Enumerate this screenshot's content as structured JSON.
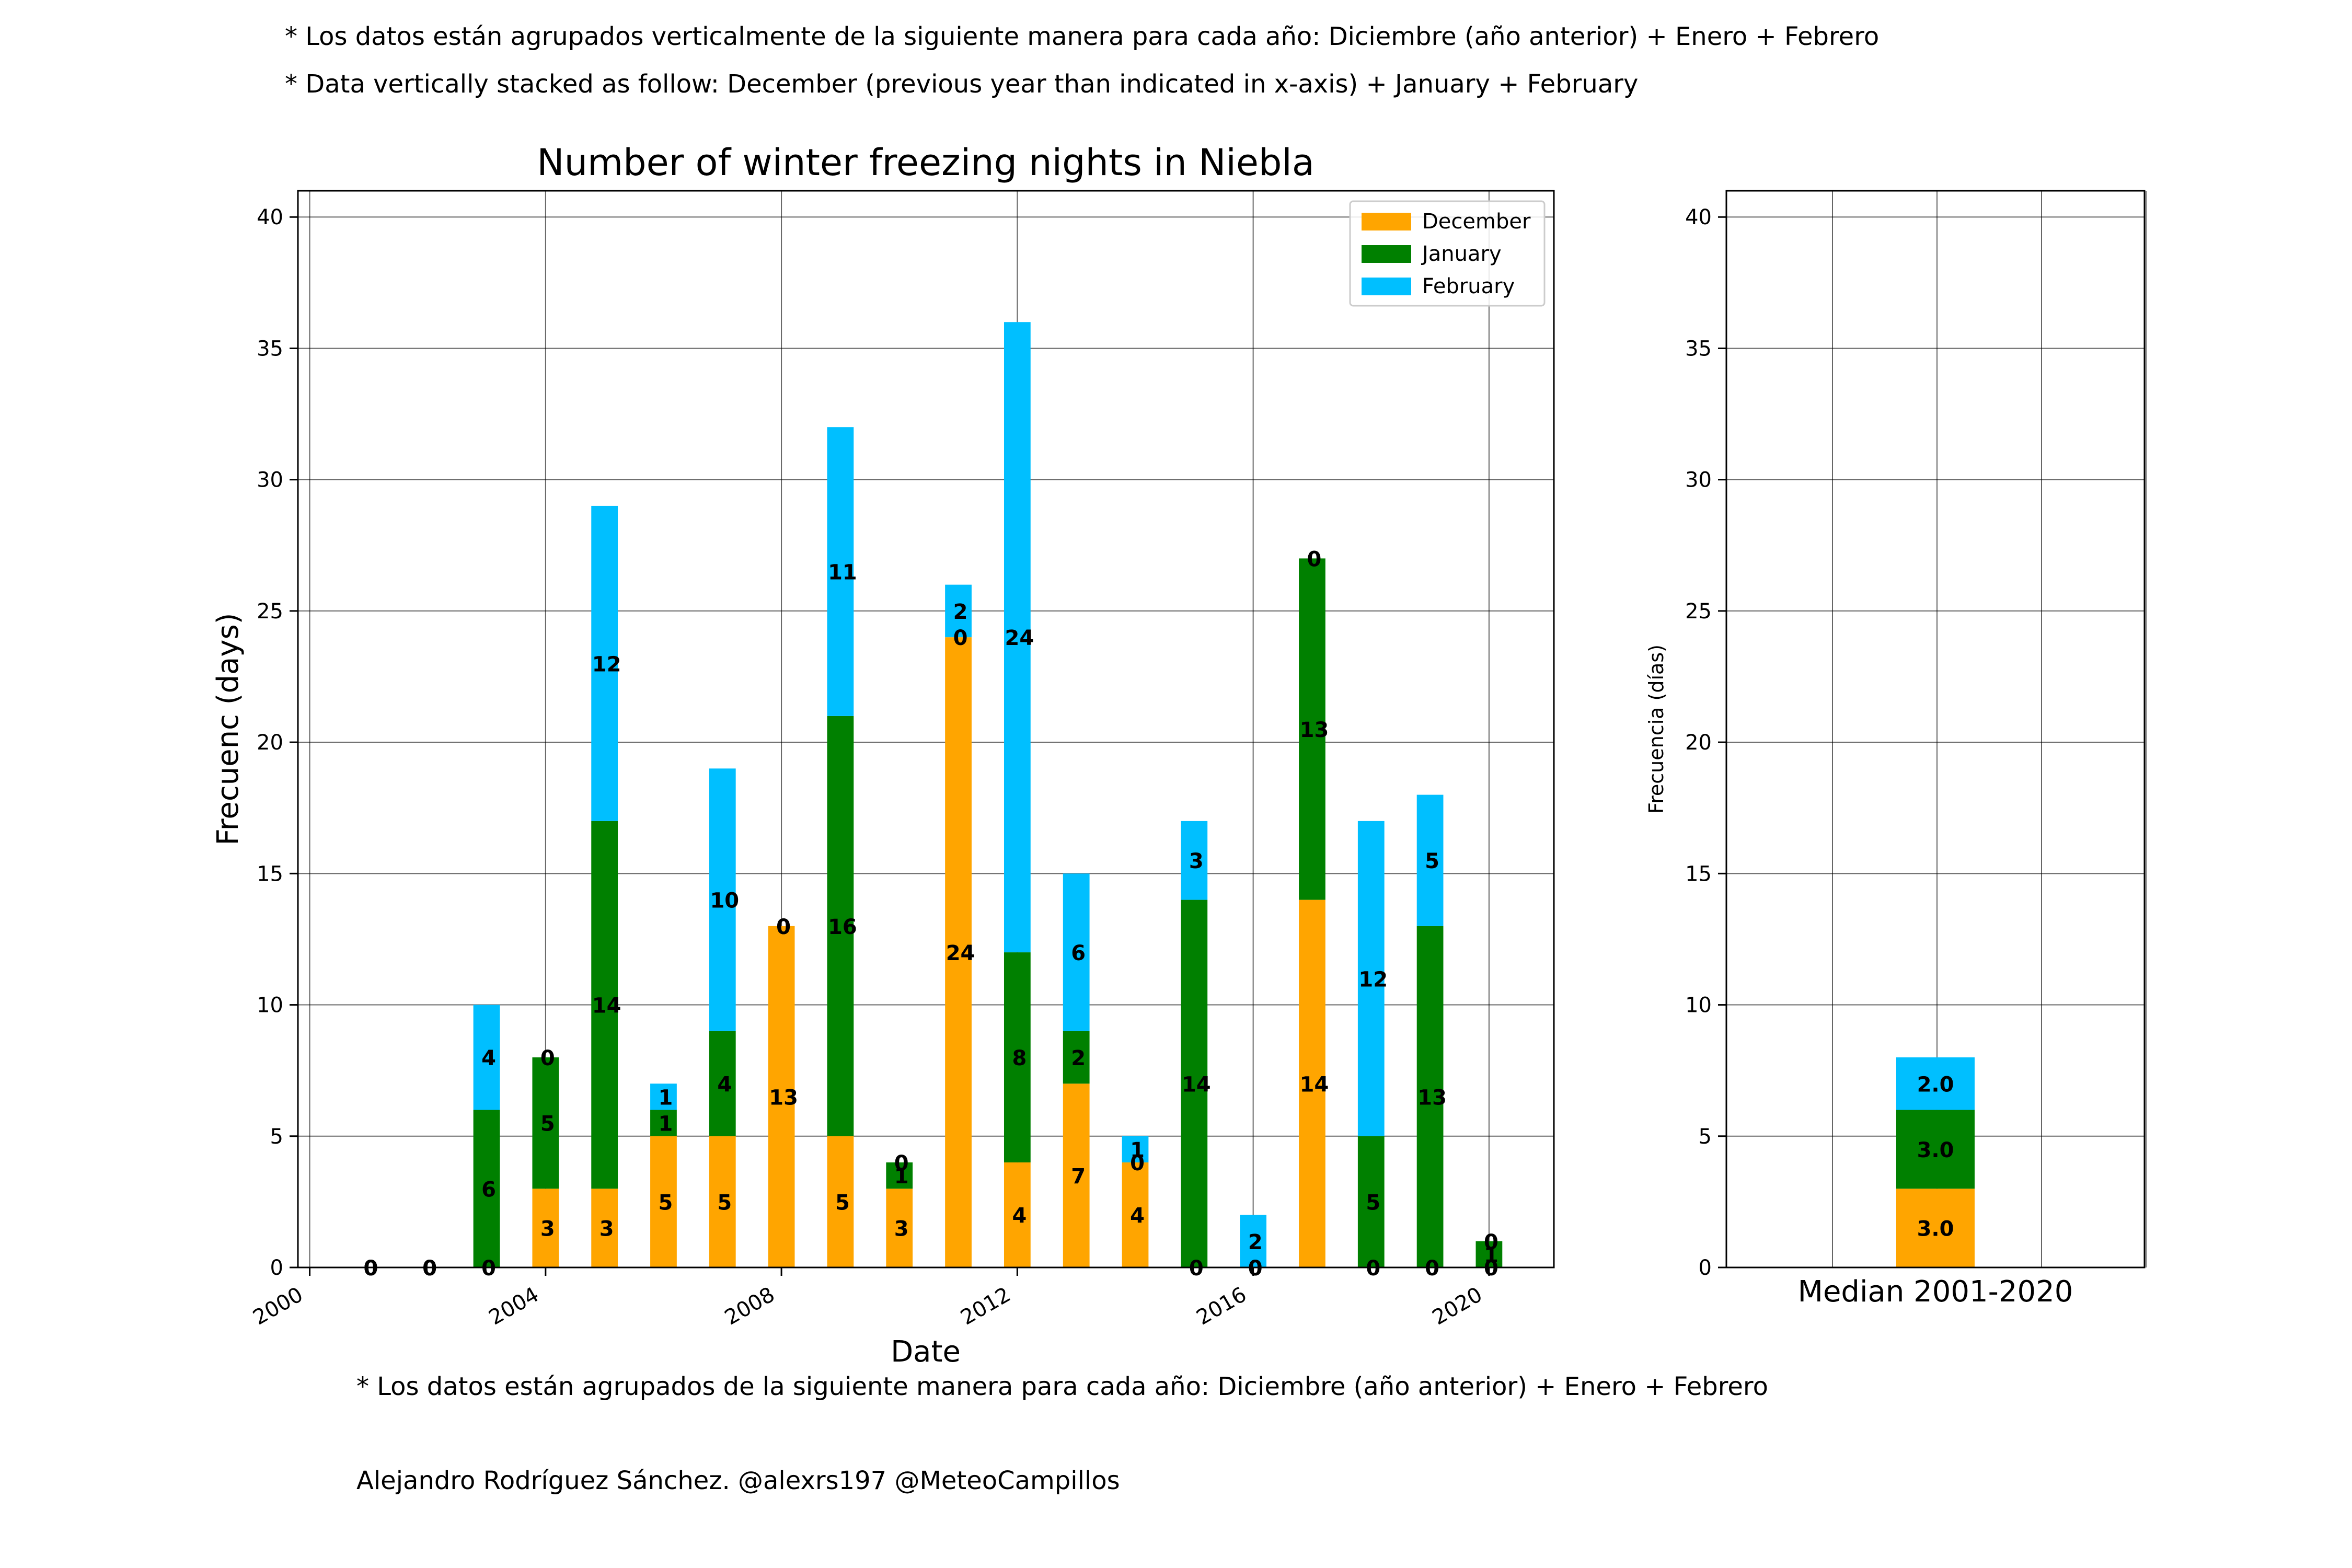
{
  "notes": {
    "top_es": "* Los datos están agrupados verticalmente de la siguiente manera para cada año: Diciembre (año anterior) + Enero  + Febrero",
    "top_en": "* Data vertically stacked as follow: December (previous year than indicated in x-axis) + January  + February",
    "bottom_es": "* Los datos están agrupados de la siguiente manera para cada año: Diciembre (año anterior) + Enero  + Febrero",
    "credit": "Alejandro Rodríguez Sánchez. @alexrs197 @MeteoCampillos"
  },
  "colors": {
    "December": "#FFA500",
    "January": "#008000",
    "February": "#00BFFF"
  },
  "chart_data": [
    {
      "type": "bar",
      "stacked": true,
      "title": "Number of winter freezing nights in Niebla",
      "xlabel": "Date",
      "ylabel": "Frecuenc (days)",
      "xlim": [
        1999.8,
        2021.1
      ],
      "ylim": [
        0,
        41
      ],
      "yticks": [
        0,
        5,
        10,
        15,
        20,
        25,
        30,
        35,
        40
      ],
      "xticks": [
        2000,
        2004,
        2008,
        2012,
        2016,
        2020
      ],
      "grid": true,
      "legend": "top-right",
      "x": [
        2001,
        2002,
        2003,
        2004,
        2005,
        2006,
        2007,
        2008,
        2009,
        2010,
        2011,
        2012,
        2013,
        2014,
        2015,
        2016,
        2017,
        2018,
        2019,
        2020
      ],
      "series": [
        {
          "name": "December",
          "values": [
            0,
            0,
            0,
            3,
            3,
            5,
            5,
            13,
            5,
            3,
            24,
            4,
            7,
            4,
            0,
            0,
            14,
            0,
            0,
            0
          ]
        },
        {
          "name": "January",
          "values": [
            0,
            0,
            6,
            5,
            14,
            1,
            4,
            0,
            16,
            1,
            0,
            8,
            2,
            0,
            14,
            0,
            13,
            5,
            13,
            1
          ]
        },
        {
          "name": "February",
          "values": [
            0,
            0,
            4,
            0,
            12,
            1,
            10,
            0,
            11,
            0,
            2,
            24,
            6,
            1,
            3,
            2,
            0,
            12,
            5,
            0
          ]
        }
      ]
    },
    {
      "type": "bar",
      "stacked": true,
      "xlabel": "Median 2001-2020",
      "ylabel": "Frecuencia (días)",
      "ylim": [
        0,
        41
      ],
      "yticks": [
        0,
        5,
        10,
        15,
        20,
        25,
        30,
        35,
        40
      ],
      "grid": true,
      "series": [
        {
          "name": "December",
          "value": 3.0,
          "label": "3.0"
        },
        {
          "name": "January",
          "value": 3.0,
          "label": "3.0"
        },
        {
          "name": "February",
          "value": 2.0,
          "label": "2.0"
        }
      ]
    }
  ]
}
